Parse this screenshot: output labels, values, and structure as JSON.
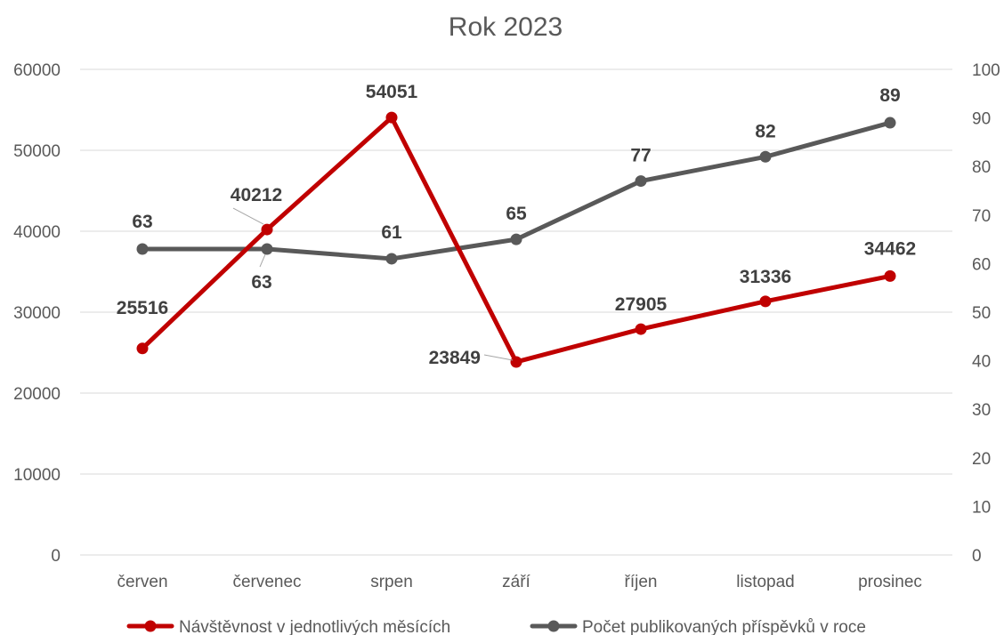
{
  "chart_data": {
    "type": "line",
    "title": "Rok 2023",
    "categories": [
      "červen",
      "červenec",
      "srpen",
      "září",
      "říjen",
      "listopad",
      "prosinec"
    ],
    "y_left": {
      "ylim": [
        0,
        60000
      ],
      "ticks": [
        "0",
        "10000",
        "20000",
        "30000",
        "40000",
        "50000",
        "60000"
      ]
    },
    "y_right": {
      "ylim": [
        0,
        100
      ],
      "ticks": [
        "0",
        "10",
        "20",
        "30",
        "40",
        "50",
        "60",
        "70",
        "80",
        "90",
        "100"
      ]
    },
    "grid": true,
    "legend_position": "bottom",
    "series": [
      {
        "name": "Návštěvnost v jednotlivých měsících",
        "axis": "left",
        "color": "#c00000",
        "values": [
          25516,
          40212,
          54051,
          23849,
          27905,
          31336,
          34462
        ],
        "labels": [
          "25516",
          "40212",
          "54051",
          "23849",
          "27905",
          "31336",
          "34462"
        ]
      },
      {
        "name": "Počet publikovaných příspěvků v roce",
        "axis": "right",
        "color": "#595959",
        "values": [
          63,
          63,
          61,
          65,
          77,
          82,
          89
        ],
        "labels": [
          "63",
          "63",
          "61",
          "65",
          "77",
          "82",
          "89"
        ]
      }
    ]
  }
}
